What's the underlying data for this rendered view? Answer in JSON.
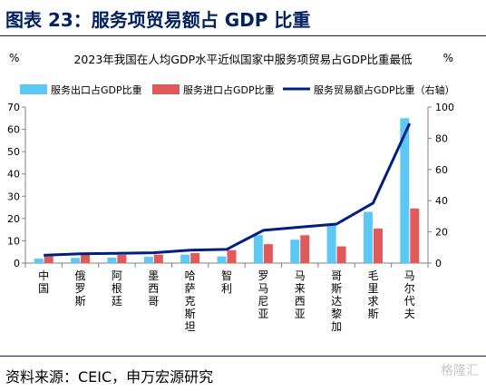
{
  "figure_title": "图表 23：服务项贸易额占 GDP 比重",
  "source": "资料来源：CEIC，申万宏源研究",
  "watermark": "格隆汇",
  "chart_data": {
    "type": "bar",
    "title": "2023年我国在人均GDP水平近似国家中服务项贸易占GDP比重最低",
    "left_axis_unit": "%",
    "right_axis_unit": "%",
    "categories": [
      "中国",
      "俄罗斯",
      "阿根廷",
      "墨西哥",
      "哈萨克斯坦",
      "智利",
      "罗马尼亚",
      "马来西亚",
      "哥斯达黎加",
      "毛里求斯",
      "马尔代夫"
    ],
    "series": [
      {
        "name": "服务出口占GDP比重",
        "type": "bar",
        "axis": "left",
        "color": "#5bc8f5",
        "values": [
          2.0,
          2.3,
          2.5,
          2.8,
          3.8,
          3.0,
          12.5,
          10.5,
          17.5,
          23.0,
          65.0
        ]
      },
      {
        "name": "服务进口占GDP比重",
        "type": "bar",
        "axis": "left",
        "color": "#e05a5a",
        "values": [
          3.0,
          3.7,
          3.7,
          3.8,
          4.5,
          5.8,
          8.5,
          12.5,
          7.5,
          15.5,
          24.5
        ]
      },
      {
        "name": "服务贸易额占GDP比重（右轴）",
        "type": "line",
        "axis": "right",
        "color": "#002080",
        "values": [
          5.0,
          6.0,
          6.2,
          6.6,
          8.3,
          8.8,
          21.0,
          23.0,
          25.0,
          38.5,
          89.5
        ]
      }
    ],
    "yleft": {
      "min": 0,
      "max": 70,
      "ticks": [
        0,
        10,
        20,
        30,
        40,
        50,
        60,
        70
      ]
    },
    "yright": {
      "min": 0,
      "max": 100,
      "ticks": [
        0,
        20,
        40,
        60,
        80,
        100
      ]
    },
    "legend_position": "top"
  }
}
